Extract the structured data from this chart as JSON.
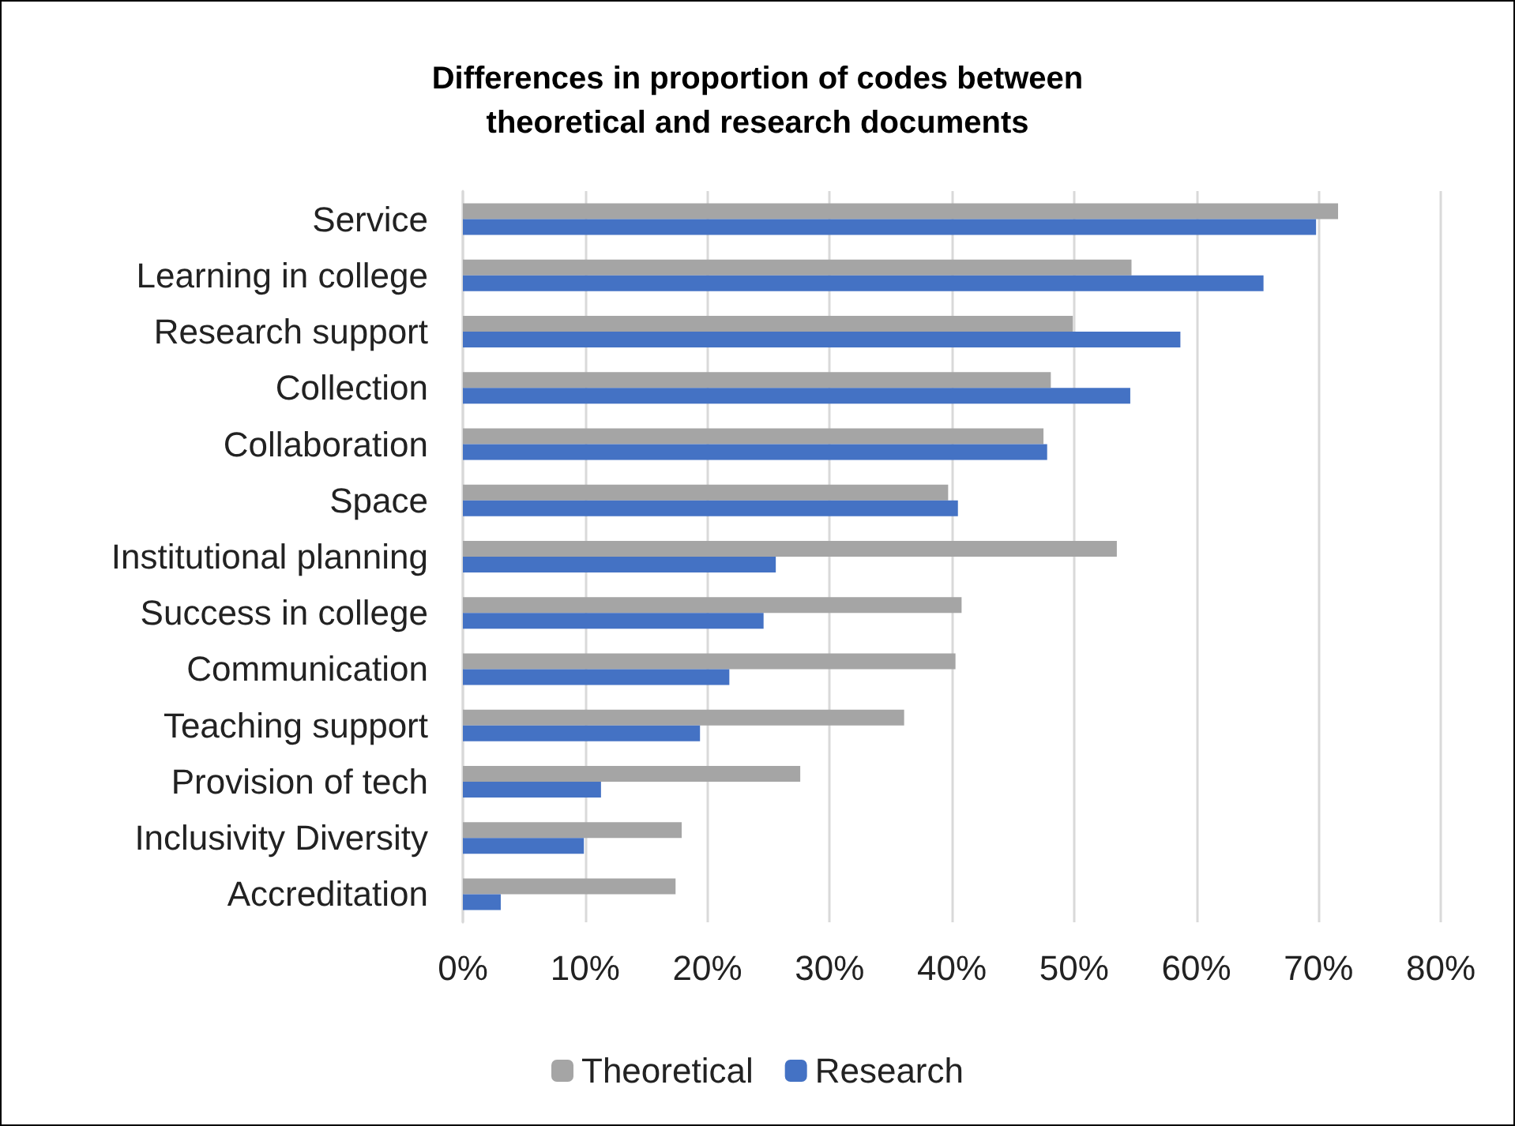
{
  "chart_data": {
    "type": "bar",
    "orientation": "horizontal",
    "title": "Differences in proportion of codes between\ntheoretical and research documents",
    "categories": [
      "Service",
      "Learning in college",
      "Research support",
      "Collection",
      "Collaboration",
      "Space",
      "Institutional planning",
      "Success in college",
      "Communication",
      "Teaching support",
      "Provision of tech",
      "Inclusivity Diversity",
      "Accreditation"
    ],
    "series": [
      {
        "name": "Theoretical",
        "color": "#a5a5a5",
        "values": [
          71.6,
          54.7,
          49.9,
          48.1,
          47.5,
          39.7,
          53.5,
          40.8,
          40.3,
          36.1,
          27.6,
          17.9,
          17.4
        ]
      },
      {
        "name": "Research",
        "color": "#4472c4",
        "values": [
          69.8,
          65.5,
          58.7,
          54.6,
          47.8,
          40.5,
          25.6,
          24.6,
          21.8,
          19.4,
          11.3,
          9.9,
          3.1
        ]
      }
    ],
    "xlim": [
      0,
      80
    ],
    "xticks": [
      {
        "value": 0,
        "label": "0%"
      },
      {
        "value": 10,
        "label": "10%"
      },
      {
        "value": 20,
        "label": "20%"
      },
      {
        "value": 30,
        "label": "30%"
      },
      {
        "value": 40,
        "label": "40%"
      },
      {
        "value": 50,
        "label": "50%"
      },
      {
        "value": 60,
        "label": "60%"
      },
      {
        "value": 70,
        "label": "70%"
      },
      {
        "value": 80,
        "label": "80%"
      }
    ],
    "grid": "x",
    "legend": "bottom"
  }
}
